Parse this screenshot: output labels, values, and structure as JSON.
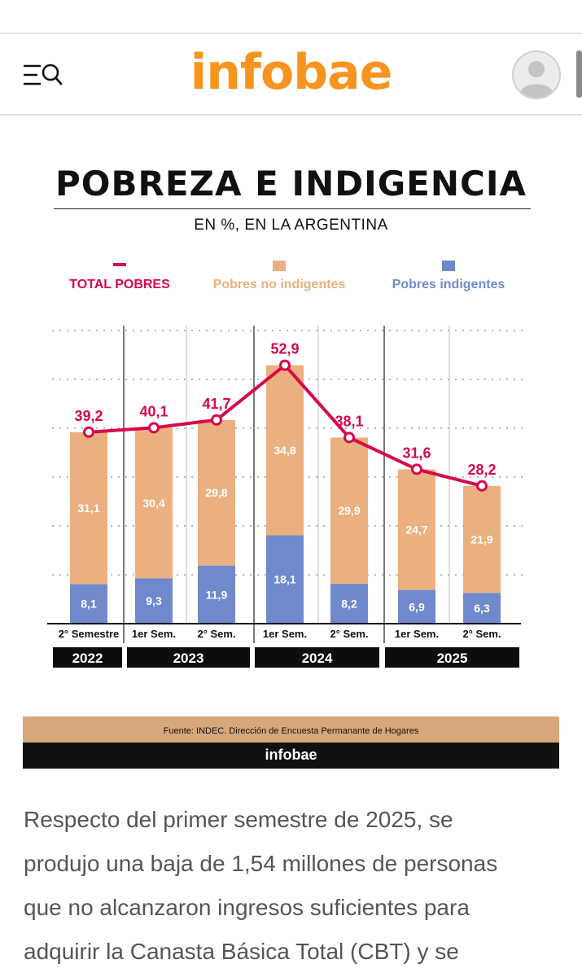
{
  "header": {
    "logo": "infobae"
  },
  "chart_data": {
    "type": "bar",
    "title": "POBREZA E INDIGENCIA",
    "subtitle": "EN %, EN LA ARGENTINA",
    "legend": [
      {
        "name": "TOTAL POBRES",
        "color": "#d6094b"
      },
      {
        "name": "Pobres no indigentes",
        "color": "#ebb07f"
      },
      {
        "name": "Pobres indigentes",
        "color": "#7089cc"
      }
    ],
    "categories": [
      "2° Semestre",
      "1er Sem.",
      "2° Sem.",
      "1er Sem.",
      "2° Sem.",
      "1er Sem.",
      "2° Sem."
    ],
    "years": [
      {
        "label": "2022",
        "span": 1
      },
      {
        "label": "2023",
        "span": 2
      },
      {
        "label": "2024",
        "span": 2
      },
      {
        "label": "2025",
        "span": 2
      }
    ],
    "series": [
      {
        "name": "Pobres indigentes",
        "values": [
          8.1,
          9.3,
          11.9,
          18.1,
          8.2,
          6.9,
          6.3
        ]
      },
      {
        "name": "Pobres no indigentes",
        "values": [
          31.1,
          30.4,
          29.8,
          34.8,
          29.9,
          24.7,
          21.9
        ]
      },
      {
        "name": "TOTAL POBRES",
        "values": [
          39.2,
          40.1,
          41.7,
          52.9,
          38.1,
          31.6,
          28.2
        ]
      }
    ],
    "value_labels": {
      "indigentes": [
        "8,1",
        "9,3",
        "11,9",
        "18,1",
        "8,2",
        "6,9",
        "6,3"
      ],
      "no_indigentes": [
        "31,1",
        "30,4",
        "29,8",
        "34,8",
        "29,9",
        "24,7",
        "21,9"
      ],
      "total": [
        "39,2",
        "40,1",
        "41,7",
        "52,9",
        "38,1",
        "31,6",
        "28,2"
      ]
    },
    "ylim": [
      0,
      60
    ],
    "grid": true
  },
  "source": "Fuente: INDEC. Dirección de Encuesta Permanante de Hogares",
  "footer_brand": "infobae",
  "article": {
    "lines": [
      "Respecto del primer semestre de 2025, se",
      "produjo una baja de 1,54 millones de personas",
      "que no alcanzaron ingresos suficientes para",
      "adquirir la Canasta Básica Total (CBT) y se"
    ]
  }
}
